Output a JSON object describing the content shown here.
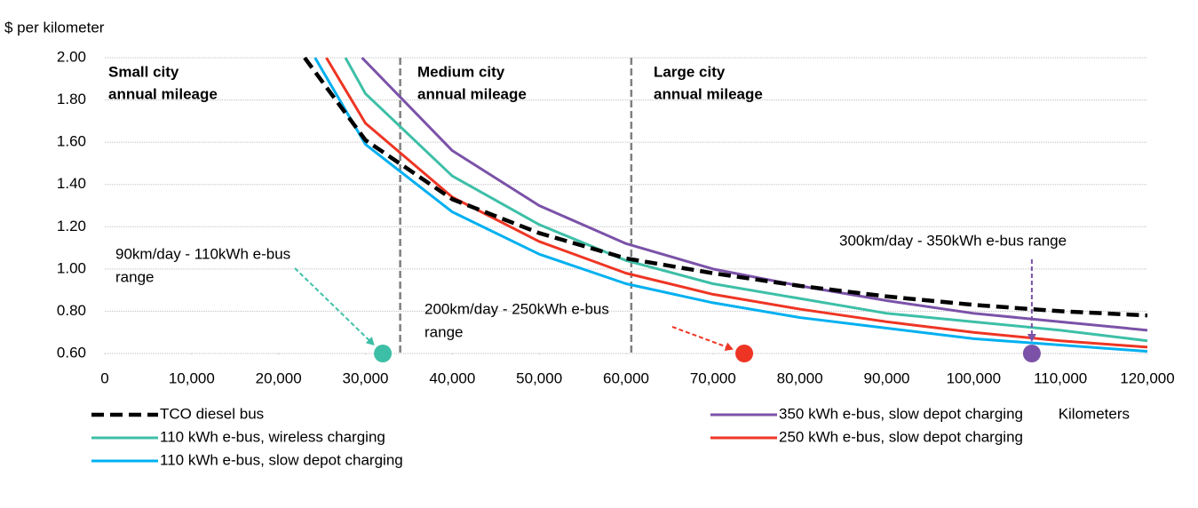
{
  "chart_data": {
    "type": "line",
    "y_axis_label": "$ per kilometer",
    "x_axis_label": "Kilometers",
    "xlim": [
      0,
      120000
    ],
    "ylim": [
      0.6,
      2.0
    ],
    "xticks": [
      0,
      {
        "value": 10000,
        "label": "10,000"
      },
      {
        "value": 20000,
        "label": "20,000"
      },
      {
        "value": 30000,
        "label": "30,000"
      },
      {
        "value": 40000,
        "label": "40,000"
      },
      {
        "value": 50000,
        "label": "50,000"
      },
      {
        "value": 60000,
        "label": "60,000"
      },
      {
        "value": 70000,
        "label": "70,000"
      },
      {
        "value": 80000,
        "label": "80,000"
      },
      {
        "value": 90000,
        "label": "90,000"
      },
      {
        "value": 100000,
        "label": "100,000"
      },
      {
        "value": 110000,
        "label": "110,000"
      },
      {
        "value": 120000,
        "label": "120,000"
      }
    ],
    "yticks": [
      {
        "value": 0.6,
        "label": "0.60"
      },
      {
        "value": 0.8,
        "label": "0.80"
      },
      {
        "value": 1.0,
        "label": "1.00"
      },
      {
        "value": 1.2,
        "label": "1.20"
      },
      {
        "value": 1.4,
        "label": "1.40"
      },
      {
        "value": 1.6,
        "label": "1.60"
      },
      {
        "value": 1.8,
        "label": "1.80"
      },
      {
        "value": 2.0,
        "label": "2.00"
      }
    ],
    "grid": true,
    "series": [
      {
        "name": "TCO diesel bus",
        "color": "#000000",
        "dashed": true,
        "x": [
          23000,
          30000,
          40000,
          50000,
          60000,
          70000,
          80000,
          90000,
          100000,
          110000,
          120000
        ],
        "values": [
          2.0,
          1.61,
          1.33,
          1.17,
          1.05,
          0.98,
          0.92,
          0.87,
          0.83,
          0.8,
          0.78
        ]
      },
      {
        "name": "110 kWh e-bus, wireless charging",
        "color": "#3dbfa7",
        "x": [
          27700,
          30000,
          40000,
          50000,
          60000,
          70000,
          80000,
          90000,
          100000,
          110000,
          120000
        ],
        "values": [
          2.0,
          1.83,
          1.44,
          1.21,
          1.04,
          0.93,
          0.86,
          0.79,
          0.75,
          0.71,
          0.66
        ]
      },
      {
        "name": "110 kWh e-bus, slow depot charging",
        "color": "#00b0f0",
        "x": [
          24200,
          30000,
          40000,
          50000,
          60000,
          70000,
          80000,
          90000,
          100000,
          110000,
          120000
        ],
        "values": [
          2.0,
          1.59,
          1.27,
          1.07,
          0.93,
          0.84,
          0.77,
          0.72,
          0.67,
          0.64,
          0.61
        ]
      },
      {
        "name": "350 kWh e-bus, slow depot charging",
        "color": "#7b52a8",
        "x": [
          29600,
          40000,
          50000,
          60000,
          70000,
          80000,
          90000,
          100000,
          110000,
          120000
        ],
        "values": [
          2.0,
          1.56,
          1.3,
          1.12,
          1.0,
          0.92,
          0.85,
          0.79,
          0.75,
          0.71
        ]
      },
      {
        "name": "250 kWh e-bus, slow depot charging",
        "color": "#ee3524",
        "x": [
          25500,
          30000,
          40000,
          50000,
          60000,
          70000,
          80000,
          90000,
          100000,
          110000,
          120000
        ],
        "values": [
          2.0,
          1.69,
          1.34,
          1.13,
          0.98,
          0.88,
          0.81,
          0.75,
          0.7,
          0.66,
          0.63
        ]
      }
    ],
    "vlines": [
      34000,
      60600
    ],
    "regions": [
      [
        "Small city",
        "annual mileage"
      ],
      [
        "Medium city",
        "annual mileage"
      ],
      [
        "Large city",
        "annual mileage"
      ]
    ],
    "region_color": "#00b0f0",
    "points": [
      {
        "x": 32000,
        "y": 0.6,
        "color": "#3dbfa7",
        "label": [
          "90km/day - 110kWh e-bus",
          "range"
        ]
      },
      {
        "x": 73600,
        "y": 0.6,
        "color": "#ee3524",
        "label": [
          "200km/day - 250kWh e-bus",
          "range"
        ]
      },
      {
        "x": 106700,
        "y": 0.6,
        "color": "#7b52a8",
        "label": [
          "300km/day - 350kWh e-bus range"
        ]
      }
    ]
  }
}
